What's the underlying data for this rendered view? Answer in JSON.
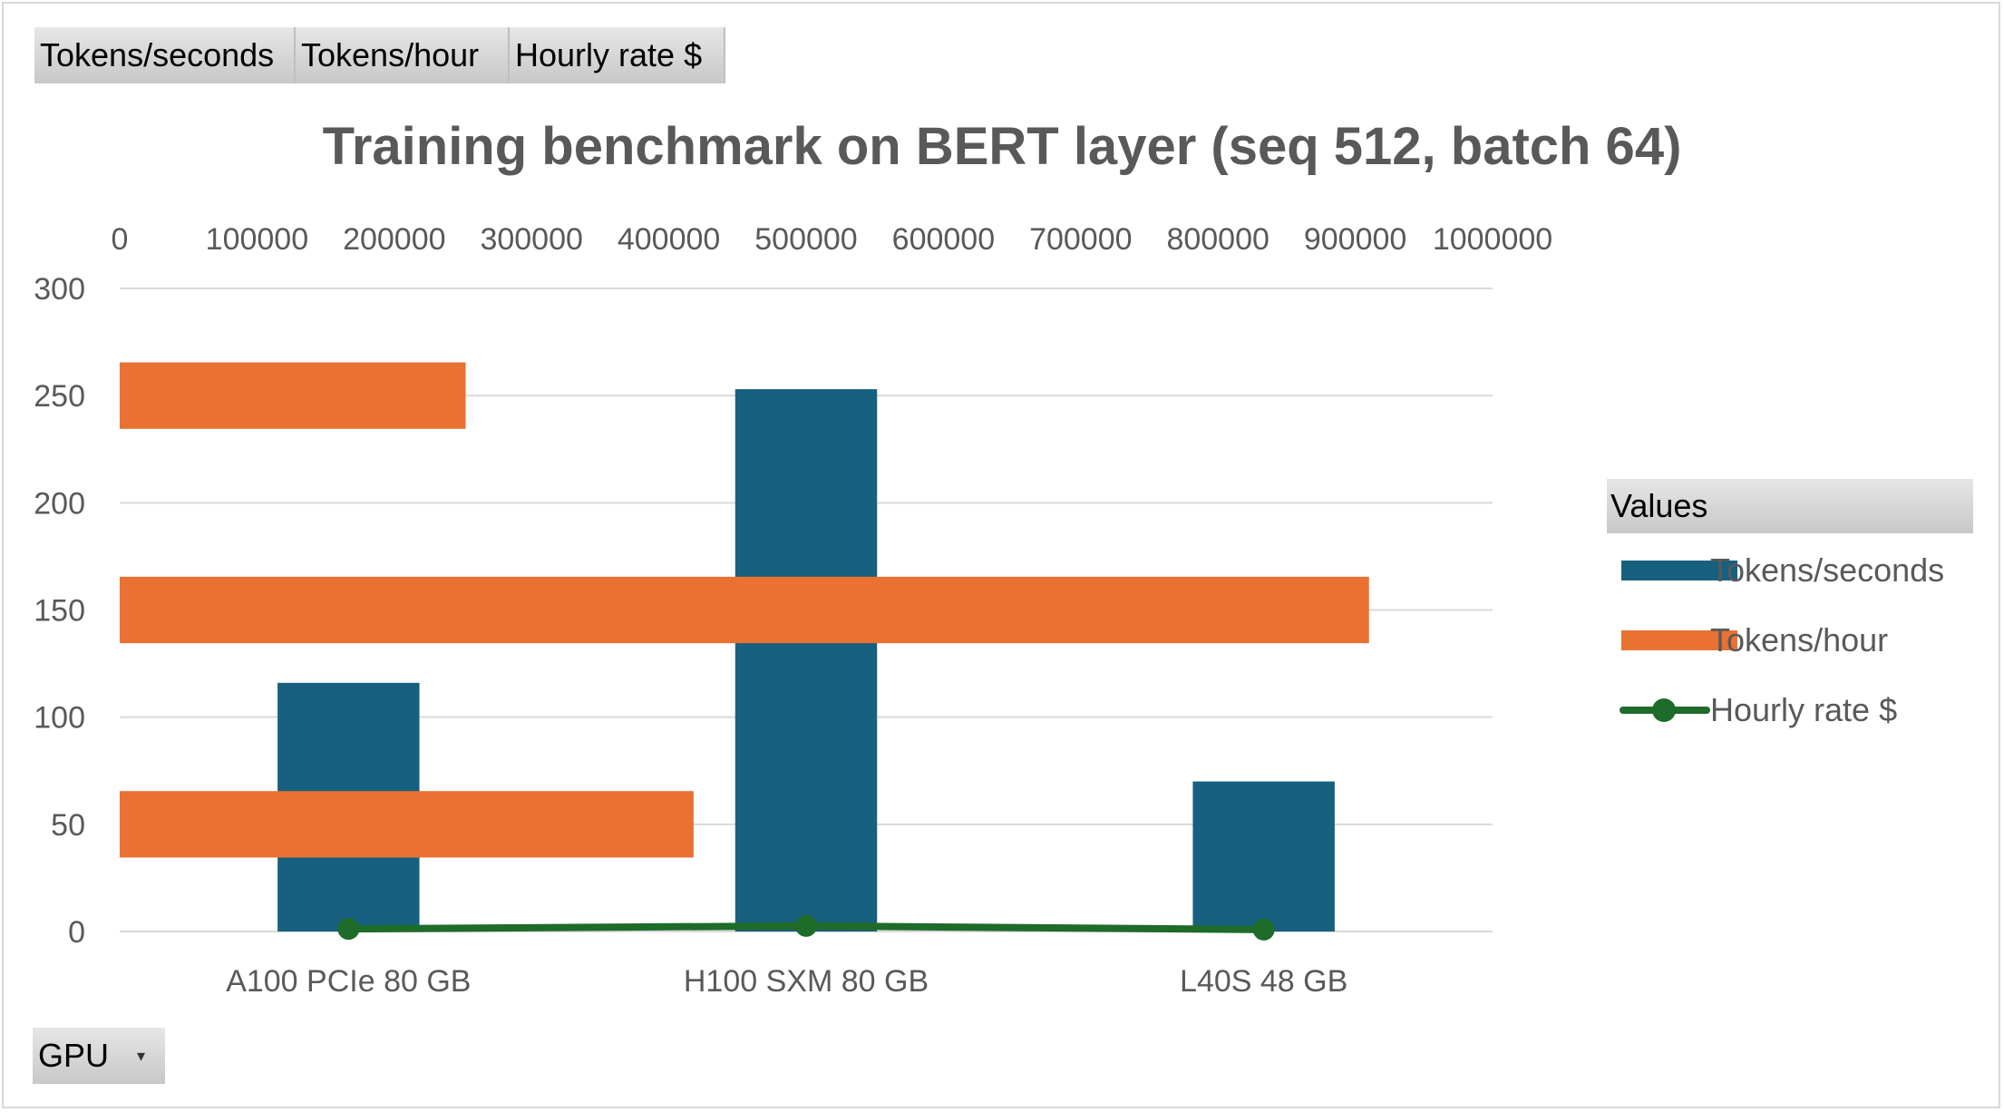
{
  "field_buttons": [
    "Tokens/seconds",
    "Tokens/hour",
    "Hourly  rate $"
  ],
  "axis_field_button": {
    "label": "GPU",
    "icon": "dropdown-arrow-icon"
  },
  "legend": {
    "title": "Values",
    "items": [
      {
        "label": "Tokens/seconds",
        "color": "#17607f",
        "marker": "square"
      },
      {
        "label": "Tokens/hour",
        "color": "#e97132",
        "marker": "square"
      },
      {
        "label": "Hourly rate $",
        "color": "#1e6b2a",
        "marker": "line-dot"
      }
    ]
  },
  "chart_data": {
    "type": "bar",
    "title": "Training  benchmark on BERT layer (seq 512, batch 64)",
    "categories": [
      "A100 PCIe 80 GB",
      "H100 SXM 80 GB",
      "L40S 48 GB"
    ],
    "primary_axis": {
      "ylim": [
        0,
        300
      ],
      "ticks": [
        0,
        50,
        100,
        150,
        200,
        250,
        300
      ],
      "tick_labels": [
        "0",
        "50",
        "100",
        "150",
        "200",
        "250",
        "300"
      ]
    },
    "secondary_axis": {
      "position": "top",
      "xlim": [
        0,
        1000000
      ],
      "ticks": [
        0,
        100000,
        200000,
        300000,
        400000,
        500000,
        600000,
        700000,
        800000,
        900000,
        1000000
      ],
      "tick_labels": [
        "0",
        "100000",
        "200000",
        "300000",
        "400000",
        "500000",
        "600000",
        "700000",
        "800000",
        "900000",
        "1000000"
      ]
    },
    "grid": true,
    "legend_position": "right",
    "series": [
      {
        "name": "Tokens/seconds",
        "kind": "column",
        "axis": "primary",
        "color": "#17607f",
        "values": [
          116,
          253,
          70
        ]
      },
      {
        "name": "Tokens/hour",
        "kind": "bar",
        "axis": "secondary",
        "color": "#e97132",
        "values": [
          418000,
          910000,
          252000
        ]
      },
      {
        "name": "Hourly rate $",
        "kind": "line",
        "axis": "primary",
        "color": "#1e6b2a",
        "values": [
          1.2,
          2.6,
          0.9
        ]
      }
    ]
  }
}
